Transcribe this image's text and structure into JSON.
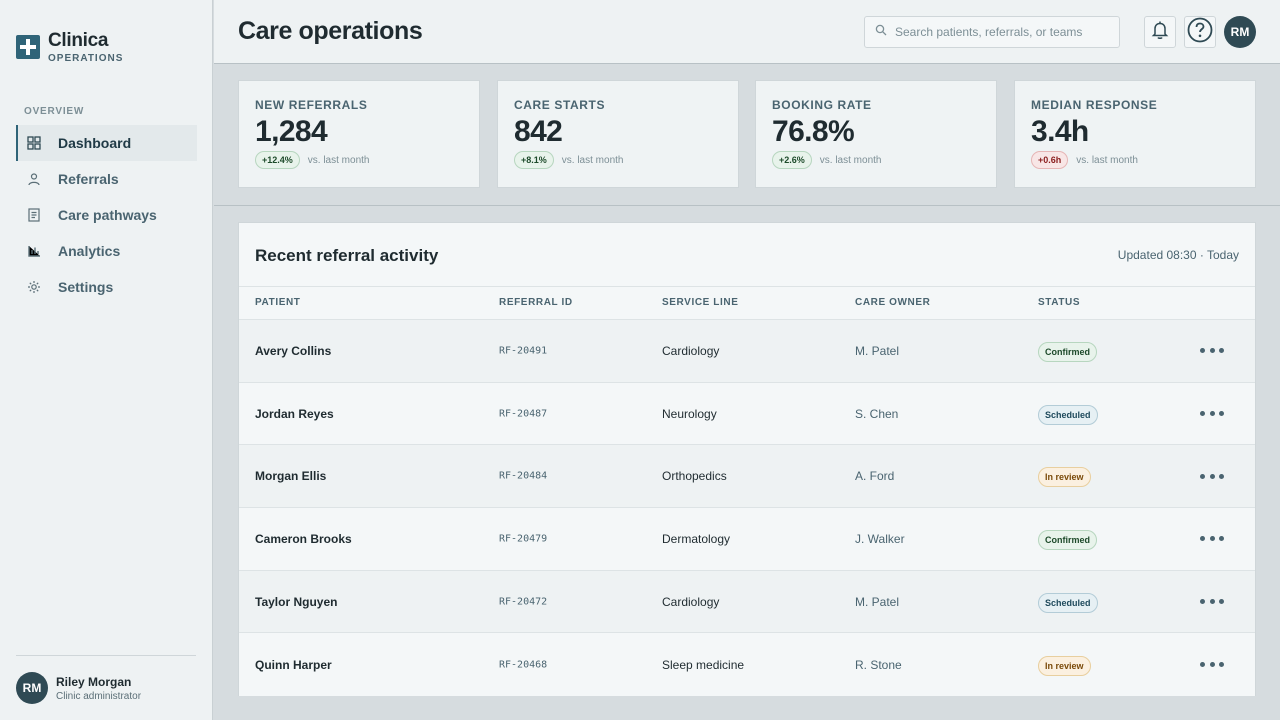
{
  "brand": {
    "name": "Clinica",
    "subtitle": "OPERATIONS"
  },
  "sidebar": {
    "section_label": "OVERVIEW",
    "items": [
      {
        "label": "Dashboard",
        "icon": "grid-icon",
        "active": true
      },
      {
        "label": "Referrals",
        "icon": "person-icon",
        "active": false
      },
      {
        "label": "Care pathways",
        "icon": "document-icon",
        "active": false
      },
      {
        "label": "Analytics",
        "icon": "bar-chart-icon",
        "active": false
      },
      {
        "label": "Settings",
        "icon": "gear-icon",
        "active": false
      }
    ],
    "user": {
      "initials": "RM",
      "name": "Riley Morgan",
      "role": "Clinic administrator"
    }
  },
  "header": {
    "title": "Care operations",
    "search_placeholder": "Search patients, referrals, or teams",
    "avatar_initials": "RM"
  },
  "kpis": [
    {
      "label": "NEW REFERRALS",
      "value": "1,284",
      "delta": "+12.4%",
      "trend": "up",
      "note": "vs. last month"
    },
    {
      "label": "CARE STARTS",
      "value": "842",
      "delta": "+8.1%",
      "trend": "up",
      "note": "vs. last month"
    },
    {
      "label": "BOOKING RATE",
      "value": "76.8%",
      "delta": "+2.6%",
      "trend": "up",
      "note": "vs. last month"
    },
    {
      "label": "MEDIAN RESPONSE",
      "value": "3.4h",
      "delta": "+0.6h",
      "trend": "down",
      "note": "vs. last month"
    }
  ],
  "activity": {
    "title": "Recent referral activity",
    "updated": "Updated 08:30 · Today",
    "columns": [
      "PATIENT",
      "REFERRAL ID",
      "SERVICE LINE",
      "CARE OWNER",
      "STATUS"
    ],
    "rows": [
      {
        "patient": "Avery Collins",
        "id": "RF-20491",
        "service": "Cardiology",
        "owner": "M. Patel",
        "status": "Confirmed",
        "status_kind": "confirmed"
      },
      {
        "patient": "Jordan Reyes",
        "id": "RF-20487",
        "service": "Neurology",
        "owner": "S. Chen",
        "status": "Scheduled",
        "status_kind": "scheduled"
      },
      {
        "patient": "Morgan Ellis",
        "id": "RF-20484",
        "service": "Orthopedics",
        "owner": "A. Ford",
        "status": "In review",
        "status_kind": "review"
      },
      {
        "patient": "Cameron Brooks",
        "id": "RF-20479",
        "service": "Dermatology",
        "owner": "J. Walker",
        "status": "Confirmed",
        "status_kind": "confirmed"
      },
      {
        "patient": "Taylor Nguyen",
        "id": "RF-20472",
        "service": "Cardiology",
        "owner": "M. Patel",
        "status": "Scheduled",
        "status_kind": "scheduled"
      },
      {
        "patient": "Quinn Harper",
        "id": "RF-20468",
        "service": "Sleep medicine",
        "owner": "R. Stone",
        "status": "In review",
        "status_kind": "review"
      }
    ]
  },
  "colors": {
    "accent": "#2f6478",
    "positive": "#1d4a2a",
    "negative": "#8a1d1d",
    "warning": "#7a4a0a"
  }
}
